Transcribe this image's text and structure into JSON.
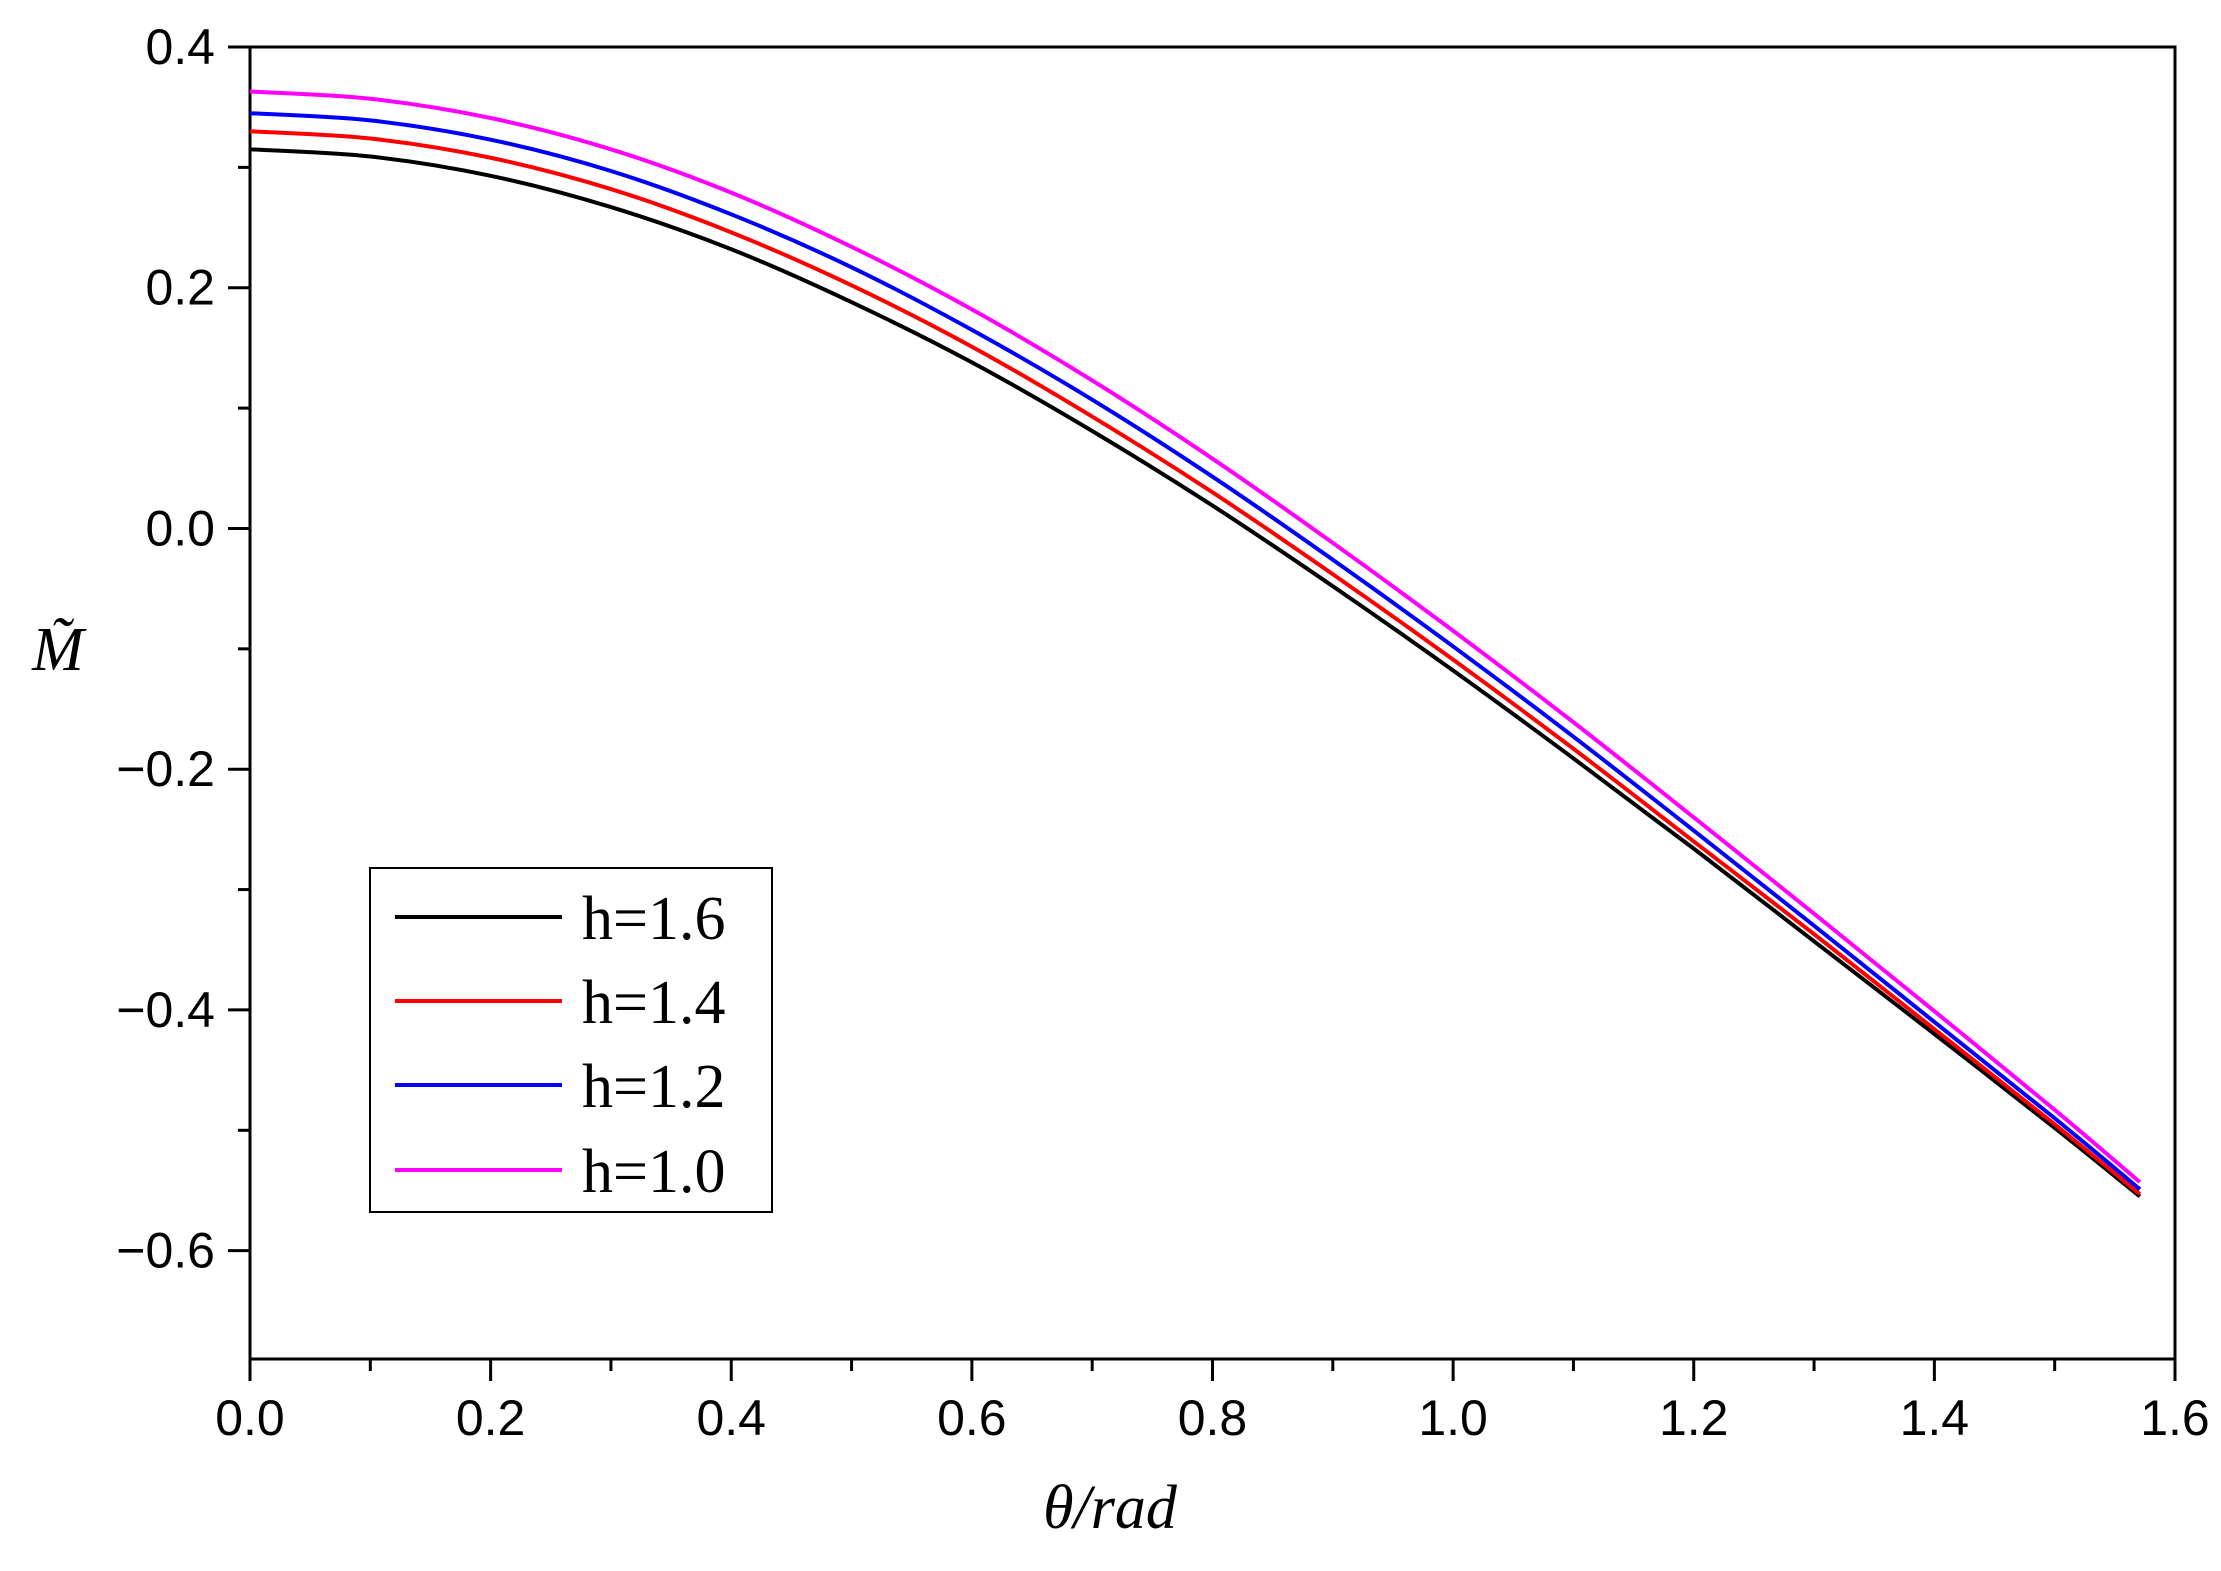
{
  "chart_data": {
    "type": "line",
    "xlabel": "θ/rad",
    "ylabel": "M̃",
    "xlim": [
      0.0,
      1.6
    ],
    "ylim": [
      -0.69,
      0.4
    ],
    "x_ticks": [
      "0.0",
      "0.2",
      "0.4",
      "0.6",
      "0.8",
      "1.0",
      "1.2",
      "1.4",
      "1.6"
    ],
    "y_ticks": [
      "0.4",
      "0.2",
      "0.0",
      "−0.2",
      "−0.4",
      "−0.6"
    ],
    "grid": false,
    "legend_position": "bottom-left",
    "x": [
      0.0,
      0.1,
      0.2,
      0.3,
      0.4,
      0.5,
      0.6,
      0.7,
      0.8,
      0.9,
      1.0,
      1.1,
      1.2,
      1.3,
      1.4,
      1.5,
      1.5708
    ],
    "series": [
      {
        "name": "h=1.6",
        "color": "#000000",
        "values": [
          0.315,
          0.309,
          0.293,
          0.267,
          0.232,
          0.188,
          0.138,
          0.081,
          0.019,
          -0.048,
          -0.118,
          -0.191,
          -0.266,
          -0.343,
          -0.42,
          -0.498,
          -0.555
        ]
      },
      {
        "name": "h=1.4",
        "color": "#ff0000",
        "values": [
          0.33,
          0.324,
          0.308,
          0.282,
          0.246,
          0.202,
          0.151,
          0.093,
          0.03,
          -0.038,
          -0.109,
          -0.183,
          -0.26,
          -0.337,
          -0.416,
          -0.495,
          -0.553
        ]
      },
      {
        "name": "h=1.2",
        "color": "#0000ff",
        "values": [
          0.345,
          0.339,
          0.323,
          0.297,
          0.261,
          0.217,
          0.165,
          0.107,
          0.043,
          -0.026,
          -0.098,
          -0.173,
          -0.251,
          -0.33,
          -0.41,
          -0.49,
          -0.549
        ]
      },
      {
        "name": "h=1.0",
        "color": "#ff00ff",
        "values": [
          0.363,
          0.357,
          0.341,
          0.315,
          0.279,
          0.234,
          0.182,
          0.123,
          0.058,
          -0.012,
          -0.085,
          -0.161,
          -0.24,
          -0.32,
          -0.401,
          -0.483,
          -0.543
        ]
      }
    ]
  }
}
